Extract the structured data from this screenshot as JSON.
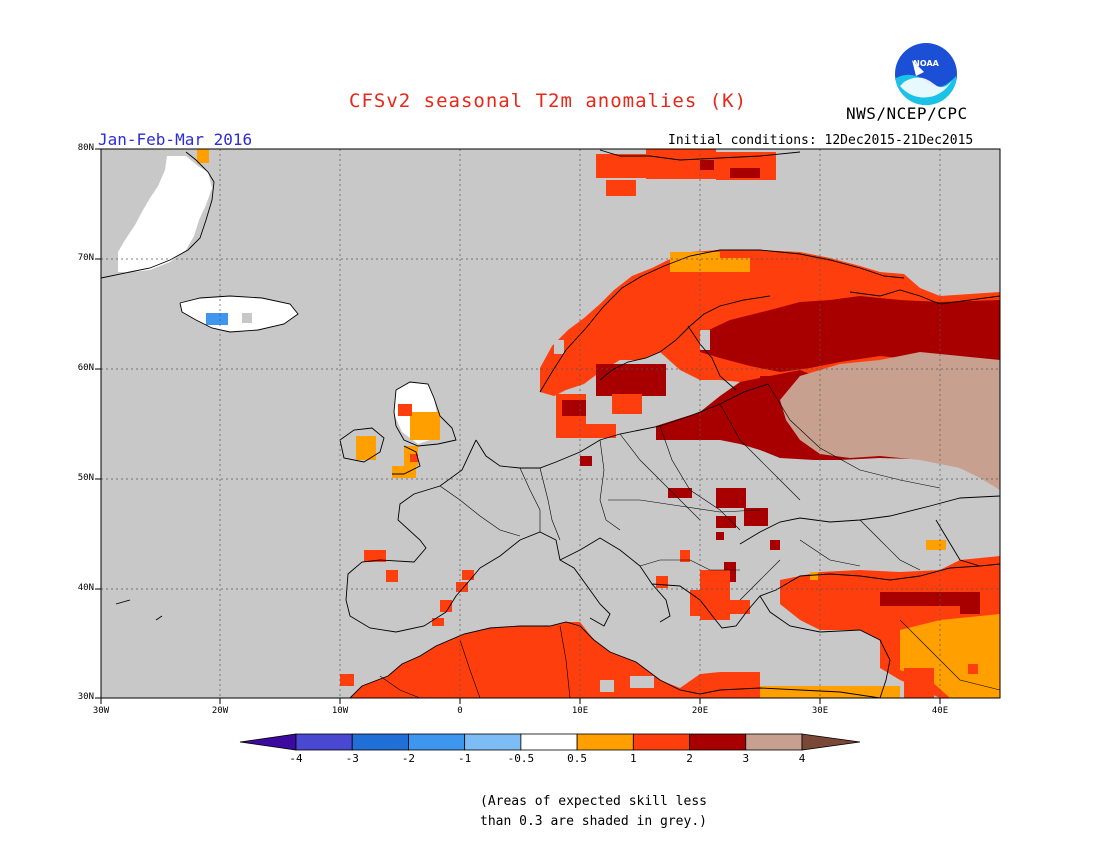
{
  "title": "CFSv2 seasonal T2m anomalies (K)",
  "period": "Jan-Feb-Mar 2016",
  "initial_conditions": "Initial conditions: 12Dec2015-21Dec2015",
  "agency": "NWS/NCEP/CPC",
  "logo_text": "NOAA",
  "lat_labels": [
    "80N",
    "70N",
    "60N",
    "50N",
    "40N",
    "30N"
  ],
  "lon_labels": [
    "30W",
    "20W",
    "10W",
    "0",
    "10E",
    "20E",
    "30E",
    "40E"
  ],
  "colorbar": {
    "ticks": [
      "-4",
      "-3",
      "-2",
      "-1",
      "-0.5",
      "0.5",
      "1",
      "2",
      "3",
      "4"
    ],
    "colors": [
      "#3c0a9e",
      "#4848d0",
      "#1f6fd6",
      "#3f96ee",
      "#7ebcf5",
      "#ffffff",
      "#ff9f00",
      "#ff3e0e",
      "#a80000",
      "#c8a090",
      "#7a4836"
    ]
  },
  "note_line1": "(Areas of expected skill less",
  "note_line2": "than 0.3 are shaded in grey.)",
  "colors": {
    "no_skill": "#c8c8c8",
    "title": "#e8261a",
    "period": "#2c2cd8"
  }
}
